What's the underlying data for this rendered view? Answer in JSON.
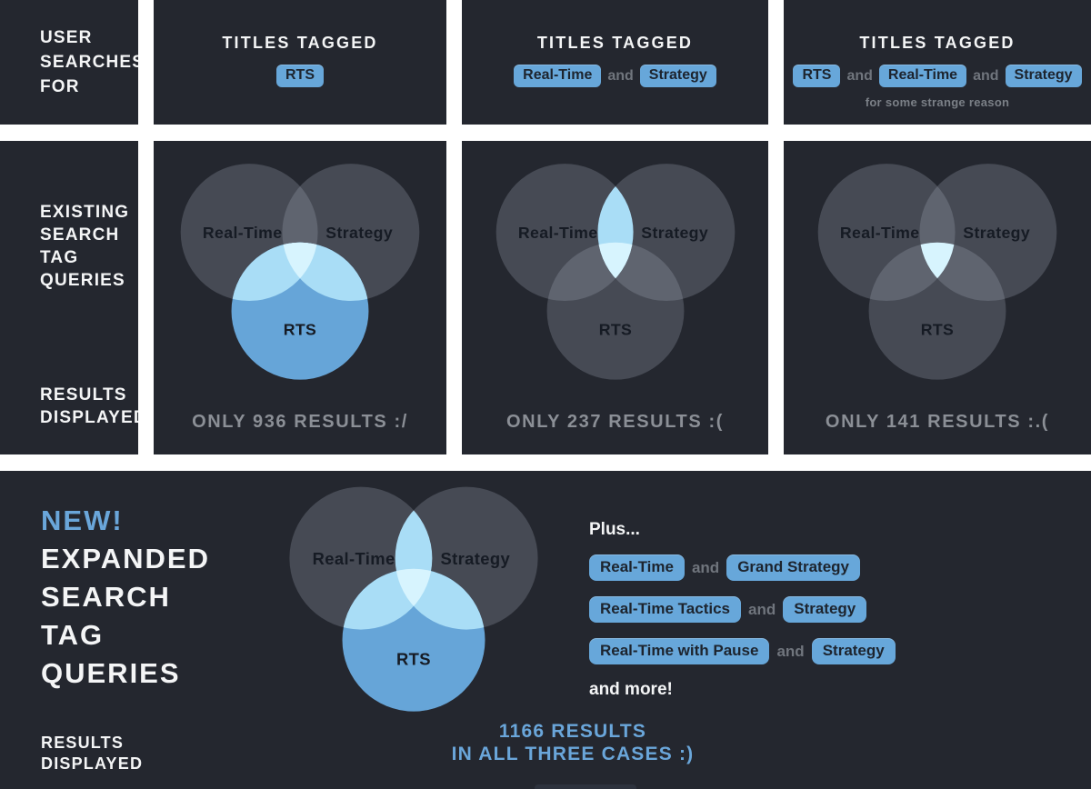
{
  "colors": {
    "gap_white": "#ffffff",
    "panel_bg": "#24272f",
    "heading_white": "#f4f5f6",
    "tag_blue": "#67a7da",
    "tag_text": "#1d242e",
    "connector_gray": "#70757d",
    "note_gray": "#7b8087",
    "muted_gray": "#8b8f96",
    "accent_blue": "#6aa6da",
    "venn_gray": "#a2abb8",
    "venn_blue": "#66a5d8",
    "venn_light": "#a9ddf6",
    "venn_lightest": "#d7f4fe",
    "venn_label": "#161b24"
  },
  "common": {
    "connector": "and"
  },
  "row1": {
    "label_lines": [
      "USER",
      "SEARCHES",
      "FOR"
    ],
    "panels": [
      {
        "title": "TITLES TAGGED",
        "tags": [
          "RTS"
        ],
        "note": ""
      },
      {
        "title": "TITLES TAGGED",
        "tags": [
          "Real-Time",
          "Strategy"
        ],
        "note": ""
      },
      {
        "title": "TITLES TAGGED",
        "tags": [
          "RTS",
          "Real-Time",
          "Strategy"
        ],
        "note": "for some strange reason"
      }
    ]
  },
  "row2": {
    "label_top_lines": [
      "EXISTING",
      "SEARCH",
      "TAG",
      "QUERIES"
    ],
    "label_bottom_lines": [
      "RESULTS",
      "DISPLAYED"
    ],
    "venns": [
      {
        "labels": {
          "a": "Real-Time",
          "b": "Strategy",
          "c": "RTS"
        },
        "highlight": [
          "C",
          "CA",
          "CB",
          "ABC"
        ],
        "result": "ONLY 936 RESULTS :/"
      },
      {
        "labels": {
          "a": "Real-Time",
          "b": "Strategy",
          "c": "RTS"
        },
        "highlight": [
          "AB",
          "ABC"
        ],
        "result": "ONLY 237 RESULTS :("
      },
      {
        "labels": {
          "a": "Real-Time",
          "b": "Strategy",
          "c": "RTS"
        },
        "highlight": [
          "ABC"
        ],
        "result": "ONLY 141 RESULTS :.("
      }
    ]
  },
  "bottom": {
    "new_label": "NEW!",
    "heading_lines": [
      "EXPANDED",
      "SEARCH",
      "TAG",
      "QUERIES"
    ],
    "results_label_lines": [
      "RESULTS",
      "DISPLAYED"
    ],
    "venn": {
      "labels": {
        "a": "Real-Time",
        "b": "Strategy",
        "c": "RTS"
      },
      "highlight": [
        "C",
        "AB",
        "CA",
        "CB",
        "ABC"
      ]
    },
    "plus_label": "Plus...",
    "extra_tag_rows": [
      {
        "tags": [
          "Real-Time",
          "Grand Strategy"
        ]
      },
      {
        "tags": [
          "Real-Time Tactics",
          "Strategy"
        ]
      },
      {
        "tags": [
          "Real-Time with Pause",
          "Strategy"
        ]
      }
    ],
    "more_label": "and more!",
    "result_lines": [
      "1166 RESULTS",
      "IN ALL THREE CASES :)"
    ]
  }
}
